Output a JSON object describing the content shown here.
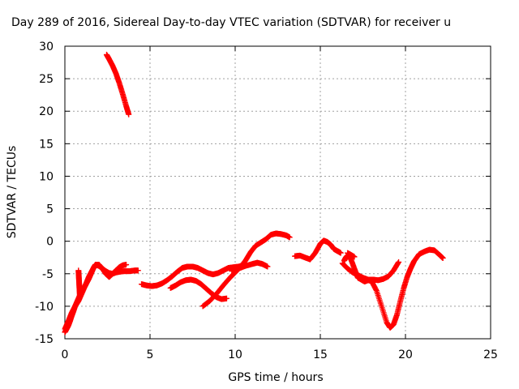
{
  "chart_data": {
    "type": "scatter",
    "title": "Day 289 of 2016, Sidereal Day-to-day VTEC variation (SDTVAR) for receiver u",
    "xlabel": "GPS time / hours",
    "ylabel": "SDTVAR / TECUs",
    "xlim": [
      0,
      25
    ],
    "ylim": [
      -15,
      30
    ],
    "xticks": [
      0,
      5,
      10,
      15,
      20,
      25
    ],
    "yticks": [
      -15,
      -10,
      -5,
      0,
      5,
      10,
      15,
      20,
      25,
      30
    ],
    "grid": true,
    "marker": "+",
    "series_color": "#ff0000",
    "series": [
      {
        "x": [
          2.45,
          2.6,
          2.8,
          3.0,
          3.2,
          3.4,
          3.6,
          3.75
        ],
        "y": [
          28.7,
          28.0,
          27.0,
          25.8,
          24.3,
          22.6,
          20.8,
          19.5
        ]
      },
      {
        "x": [
          0.0,
          0.1,
          0.2,
          0.3,
          0.4,
          0.5,
          0.6,
          0.7,
          0.8,
          0.9,
          1.0,
          1.1,
          1.2,
          1.3,
          1.4,
          1.5,
          1.6,
          1.7,
          1.8,
          2.0,
          2.2,
          2.4,
          2.6,
          2.8,
          3.0,
          3.2,
          3.4,
          3.6
        ],
        "y": [
          -14.0,
          -13.5,
          -13.0,
          -12.3,
          -11.5,
          -10.8,
          -10.0,
          -9.4,
          -8.8,
          -8.2,
          -7.7,
          -7.2,
          -6.8,
          -6.3,
          -5.8,
          -5.2,
          -4.6,
          -4.0,
          -3.6,
          -3.8,
          -4.2,
          -4.6,
          -4.9,
          -5.0,
          -4.5,
          -4.0,
          -3.7,
          -3.6
        ]
      },
      {
        "x": [
          0.0,
          0.2,
          0.4,
          0.6,
          0.8,
          1.0,
          1.2,
          1.4,
          1.6,
          1.8,
          2.0,
          2.2,
          2.4,
          2.6,
          2.8,
          3.0,
          3.2,
          3.5,
          3.8,
          4.1,
          4.3
        ],
        "y": [
          -13.5,
          -12.3,
          -11.0,
          -10.0,
          -9.2,
          -8.0,
          -6.8,
          -5.5,
          -4.5,
          -3.6,
          -3.6,
          -4.2,
          -5.0,
          -5.5,
          -5.0,
          -4.8,
          -4.7,
          -4.6,
          -4.6,
          -4.5,
          -4.5
        ]
      },
      {
        "x": [
          0.8,
          0.82,
          0.84,
          0.86,
          0.88
        ],
        "y": [
          -4.5,
          -5.5,
          -6.5,
          -7.5,
          -8.5
        ]
      },
      {
        "x": [
          4.5,
          4.8,
          5.1,
          5.4,
          5.7,
          6.0,
          6.3,
          6.6,
          6.9,
          7.2,
          7.5,
          7.8,
          8.1,
          8.4,
          8.7,
          9.0,
          9.3,
          9.6,
          9.9,
          10.2,
          10.5
        ],
        "y": [
          -6.6,
          -6.8,
          -6.9,
          -6.8,
          -6.5,
          -6.0,
          -5.4,
          -4.7,
          -4.1,
          -3.9,
          -3.9,
          -4.1,
          -4.5,
          -4.9,
          -5.1,
          -4.9,
          -4.5,
          -4.1,
          -4.0,
          -3.9,
          -3.7
        ]
      },
      {
        "x": [
          6.2,
          6.5,
          6.8,
          7.1,
          7.4,
          7.7,
          8.0,
          8.3,
          8.6,
          8.9,
          9.2,
          9.5
        ],
        "y": [
          -7.2,
          -6.8,
          -6.3,
          -6.0,
          -5.9,
          -6.1,
          -6.6,
          -7.3,
          -8.0,
          -8.6,
          -8.9,
          -8.8
        ]
      },
      {
        "x": [
          8.1,
          8.5,
          8.9,
          9.3,
          9.7,
          10.0,
          10.3,
          10.6,
          10.9,
          11.2,
          11.5,
          11.8,
          12.1,
          12.4,
          12.7,
          13.0,
          13.2
        ],
        "y": [
          -10.0,
          -9.2,
          -8.1,
          -6.8,
          -5.6,
          -4.8,
          -4.0,
          -3.0,
          -1.7,
          -0.7,
          -0.2,
          0.3,
          1.0,
          1.2,
          1.1,
          0.9,
          0.6
        ]
      },
      {
        "x": [
          9.8,
          10.2,
          10.6,
          11.0,
          11.3,
          11.6,
          11.9
        ],
        "y": [
          -4.6,
          -4.2,
          -3.8,
          -3.5,
          -3.3,
          -3.5,
          -3.9
        ]
      },
      {
        "x": [
          13.5,
          13.8,
          14.1,
          14.4,
          14.7,
          15.0,
          15.2,
          15.4,
          15.6,
          15.8,
          16.0,
          16.2
        ],
        "y": [
          -2.3,
          -2.2,
          -2.5,
          -2.8,
          -1.8,
          -0.4,
          0.1,
          -0.1,
          -0.5,
          -1.2,
          -1.5,
          -1.8
        ]
      },
      {
        "x": [
          16.4,
          16.5,
          16.6,
          16.8,
          17.0,
          17.2,
          17.4,
          17.6,
          17.8,
          18.0,
          18.3,
          18.6,
          18.9,
          19.1,
          19.3,
          19.5,
          19.7,
          19.9,
          20.1,
          20.3,
          20.5,
          20.8,
          21.1,
          21.4,
          21.7,
          22.0,
          22.2
        ],
        "y": [
          -3.0,
          -2.5,
          -2.2,
          -2.8,
          -4.2,
          -5.6,
          -5.9,
          -6.2,
          -6.0,
          -6.1,
          -7.6,
          -10.0,
          -12.5,
          -13.3,
          -12.8,
          -11.3,
          -9.2,
          -7.2,
          -5.5,
          -4.2,
          -3.1,
          -2.0,
          -1.6,
          -1.3,
          -1.4,
          -2.1,
          -2.6
        ]
      },
      {
        "x": [
          16.3,
          16.6,
          16.9,
          17.2,
          17.5,
          17.8,
          18.1,
          18.4,
          18.7,
          19.0,
          19.3,
          19.6
        ],
        "y": [
          -3.4,
          -4.2,
          -4.8,
          -5.2,
          -5.6,
          -5.9,
          -5.9,
          -6.0,
          -5.8,
          -5.4,
          -4.5,
          -3.2
        ]
      },
      {
        "x": [
          16.6,
          16.8,
          17.0
        ],
        "y": [
          -1.8,
          -2.1,
          -2.4
        ]
      }
    ]
  }
}
